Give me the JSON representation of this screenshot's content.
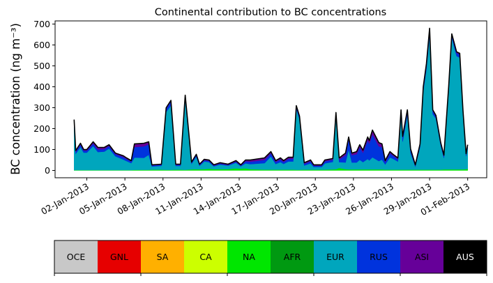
{
  "chart_data": {
    "type": "area",
    "stacked": true,
    "title": "Continental contribution to BC concentrations",
    "xlabel": "",
    "ylabel": "BC concentration (ng m⁻³)",
    "ylim": [
      -35,
      715
    ],
    "xlim": [
      "2012-12-30 12:00",
      "2013-02-02 12:00"
    ],
    "yticks": [
      0,
      100,
      200,
      300,
      400,
      500,
      600,
      700
    ],
    "xticks": [
      "02-Jan-2013",
      "05-Jan-2013",
      "08-Jan-2013",
      "11-Jan-2013",
      "14-Jan-2013",
      "17-Jan-2013",
      "20-Jan-2013",
      "23-Jan-2013",
      "26-Jan-2013",
      "29-Jan-2013",
      "01-Feb-2013"
    ],
    "xtick_dates": [
      "2013-01-02",
      "2013-01-05",
      "2013-01-08",
      "2013-01-11",
      "2013-01-14",
      "2013-01-17",
      "2013-01-20",
      "2013-01-23",
      "2013-01-26",
      "2013-01-29",
      "2013-02-01"
    ],
    "grid": false,
    "legend": {
      "placement": "bottom",
      "entries": [
        {
          "name": "OCE",
          "color": "#c8c8c8",
          "text_color": "#000000"
        },
        {
          "name": "GNL",
          "color": "#e60000",
          "text_color": "#000000"
        },
        {
          "name": "SA",
          "color": "#ffb000",
          "text_color": "#000000"
        },
        {
          "name": "CA",
          "color": "#ccff00",
          "text_color": "#000000"
        },
        {
          "name": "NA",
          "color": "#00e600",
          "text_color": "#000000"
        },
        {
          "name": "AFR",
          "color": "#009911",
          "text_color": "#000000"
        },
        {
          "name": "EUR",
          "color": "#00a6bd",
          "text_color": "#000000"
        },
        {
          "name": "RUS",
          "color": "#0033dd",
          "text_color": "#000000"
        },
        {
          "name": "ASI",
          "color": "#660099",
          "text_color": "#000000"
        },
        {
          "name": "AUS",
          "color": "#000000",
          "text_color": "#ffffff"
        }
      ]
    },
    "total_line_color": "#000000",
    "x": [
      "2013-01-01 00:00",
      "2013-01-01 03:00",
      "2013-01-01 12:00",
      "2013-01-01 18:00",
      "2013-01-02 00:00",
      "2013-01-02 12:00",
      "2013-01-02 21:00",
      "2013-01-03 09:00",
      "2013-01-03 18:00",
      "2013-01-04 06:00",
      "2013-01-04 21:00",
      "2013-01-05 03:00",
      "2013-01-05 12:00",
      "2013-01-05 18:00",
      "2013-01-06 12:00",
      "2013-01-06 21:00",
      "2013-01-07 03:00",
      "2013-01-07 21:00",
      "2013-01-08 06:00",
      "2013-01-08 15:00",
      "2013-01-09 00:00",
      "2013-01-09 09:00",
      "2013-01-09 18:00",
      "2013-01-10 06:00",
      "2013-01-10 15:00",
      "2013-01-10 21:00",
      "2013-01-11 06:00",
      "2013-01-11 15:00",
      "2013-01-12 00:00",
      "2013-01-12 12:00",
      "2013-01-13 03:00",
      "2013-01-13 18:00",
      "2013-01-14 03:00",
      "2013-01-14 12:00",
      "2013-01-14 21:00",
      "2013-01-16 00:00",
      "2013-01-16 12:00",
      "2013-01-16 21:00",
      "2013-01-17 06:00",
      "2013-01-17 12:00",
      "2013-01-17 21:00",
      "2013-01-18 06:00",
      "2013-01-18 12:00",
      "2013-01-18 18:00",
      "2013-01-19 03:00",
      "2013-01-19 15:00",
      "2013-01-19 21:00",
      "2013-01-20 12:00",
      "2013-01-20 18:00",
      "2013-01-21 09:00",
      "2013-01-21 15:00",
      "2013-01-21 21:00",
      "2013-01-22 09:00",
      "2013-01-22 15:00",
      "2013-01-22 21:00",
      "2013-01-23 06:00",
      "2013-01-23 12:00",
      "2013-01-23 18:00",
      "2013-01-24 03:00",
      "2013-01-24 06:00",
      "2013-01-24 12:00",
      "2013-01-25 00:00",
      "2013-01-25 06:00",
      "2013-01-25 12:00",
      "2013-01-25 21:00",
      "2013-01-26 03:00",
      "2013-01-26 12:00",
      "2013-01-26 18:00",
      "2013-01-26 21:00",
      "2013-01-27 06:00",
      "2013-01-27 12:00",
      "2013-01-27 21:00",
      "2013-01-28 06:00",
      "2013-01-28 12:00",
      "2013-01-28 18:00",
      "2013-01-29 00:00",
      "2013-01-29 06:00",
      "2013-01-29 12:00",
      "2013-01-29 21:00",
      "2013-01-30 03:00",
      "2013-01-30 12:00",
      "2013-01-30 18:00",
      "2013-01-31 03:00",
      "2013-01-31 09:00",
      "2013-01-31 15:00",
      "2013-01-31 21:00",
      "2013-02-01 00:00"
    ],
    "series": [
      {
        "name": "NA",
        "color": "#00e600",
        "values": [
          2,
          2,
          2,
          2,
          2,
          2,
          2,
          2,
          2,
          2,
          2,
          2,
          2,
          3,
          3,
          3,
          4,
          4,
          3,
          3,
          4,
          4,
          3,
          5,
          6,
          5,
          6,
          8,
          6,
          6,
          6,
          10,
          8,
          10,
          6,
          4,
          4,
          4,
          4,
          4,
          4,
          4,
          3,
          3,
          4,
          4,
          4,
          4,
          4,
          5,
          6,
          12,
          6,
          5,
          5,
          5,
          5,
          5,
          5,
          5,
          5,
          5,
          5,
          4,
          4,
          4,
          4,
          4,
          4,
          4,
          4,
          4,
          4,
          4,
          4,
          4,
          4,
          4,
          4,
          5,
          5,
          5,
          5,
          5,
          5,
          6,
          8
        ]
      },
      {
        "name": "EUR",
        "color": "#00a6bd",
        "values": [
          216,
          78,
          110,
          83,
          83,
          115,
          86,
          88,
          103,
          66,
          50,
          43,
          33,
          59,
          57,
          72,
          15,
          18,
          277,
          307,
          18,
          18,
          337,
          27,
          59,
          17,
          37,
          32,
          14,
          22,
          17,
          27,
          12,
          24,
          24,
          31,
          63,
          27,
          36,
          27,
          39,
          39,
          292,
          242,
          20,
          30,
          13,
          13,
          30,
          36,
          256,
          28,
          32,
          95,
          33,
          33,
          46,
          35,
          50,
          43,
          58,
          40,
          47,
          25,
          58,
          52,
          39,
          261,
          134,
          261,
          79,
          15,
          108,
          376,
          480,
          643,
          266,
          244,
          116,
          55,
          380,
          630,
          542,
          535,
          270,
          62,
          100
        ]
      },
      {
        "name": "RUS",
        "color": "#0033dd",
        "values": [
          20,
          10,
          12,
          10,
          10,
          12,
          12,
          12,
          12,
          10,
          12,
          10,
          8,
          50,
          55,
          50,
          5,
          5,
          15,
          20,
          5,
          5,
          15,
          5,
          8,
          5,
          6,
          6,
          4,
          5,
          4,
          6,
          4,
          10,
          12,
          15,
          15,
          10,
          12,
          10,
          12,
          12,
          10,
          10,
          8,
          10,
          6,
          6,
          10,
          10,
          10,
          12,
          35,
          50,
          35,
          40,
          60,
          45,
          90,
          80,
          110,
          70,
          60,
          12,
          20,
          15,
          12,
          20,
          20,
          20,
          15,
          5,
          10,
          15,
          20,
          25,
          15,
          10,
          8,
          8,
          10,
          12,
          15,
          15,
          10,
          8,
          10
        ]
      },
      {
        "name": "ASI",
        "color": "#660099",
        "values": [
          5,
          5,
          6,
          5,
          5,
          8,
          10,
          8,
          6,
          5,
          6,
          5,
          4,
          15,
          15,
          12,
          3,
          3,
          5,
          5,
          3,
          3,
          5,
          3,
          4,
          3,
          4,
          4,
          3,
          4,
          3,
          4,
          3,
          6,
          8,
          10,
          8,
          6,
          8,
          6,
          8,
          8,
          5,
          5,
          5,
          6,
          4,
          4,
          6,
          6,
          5,
          8,
          10,
          10,
          10,
          12,
          12,
          12,
          15,
          15,
          20,
          18,
          15,
          6,
          8,
          6,
          5,
          5,
          5,
          5,
          5,
          3,
          5,
          5,
          6,
          8,
          5,
          5,
          5,
          5,
          5,
          6,
          5,
          5,
          5,
          4,
          5
        ]
      }
    ]
  }
}
